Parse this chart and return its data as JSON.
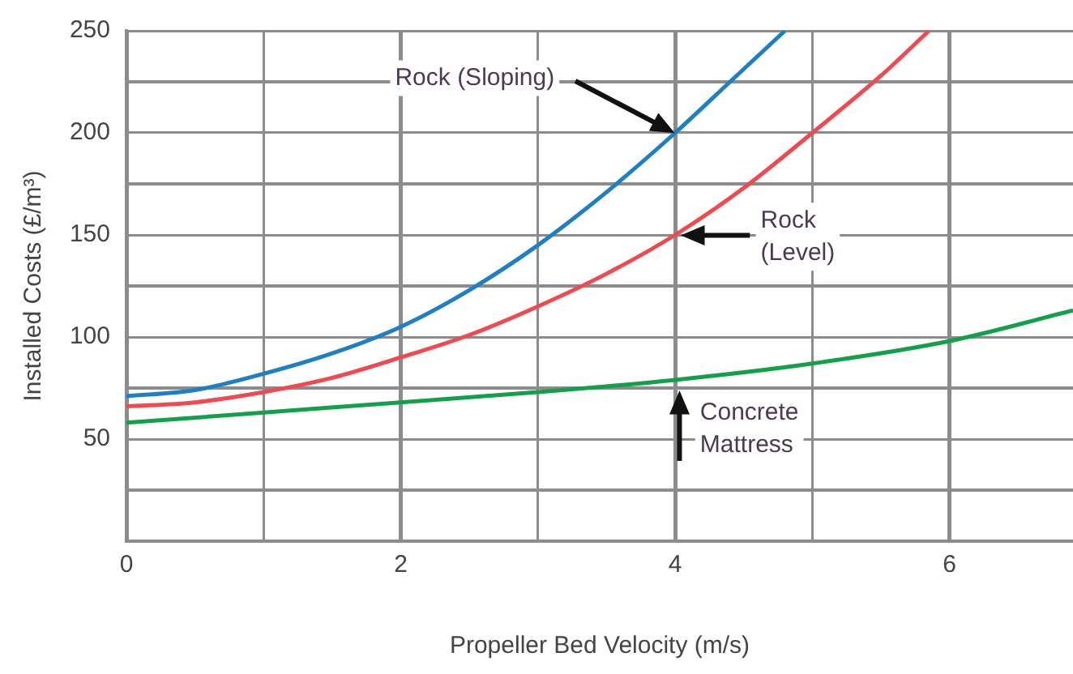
{
  "chart_data": {
    "type": "line",
    "xlabel": "Propeller Bed Velocity (m/s)",
    "ylabel": "Installed Costs (£/m³)",
    "xlim": [
      0,
      6.9
    ],
    "ylim": [
      0,
      250
    ],
    "xticks": [
      0,
      {
        "value": 1,
        "label": null
      },
      2,
      {
        "value": 3,
        "label": null
      },
      4,
      {
        "value": 5,
        "label": null
      },
      6
    ],
    "yticks": [
      {
        "value": 25,
        "label": null
      },
      50,
      {
        "value": 75,
        "label": null
      },
      100,
      {
        "value": 125,
        "label": null
      },
      150,
      {
        "value": 175,
        "label": null
      },
      200,
      {
        "value": 225,
        "label": null
      },
      250
    ],
    "grid": true,
    "legend": false,
    "marker": "none",
    "line_style": "solid",
    "series": [
      {
        "color": "#1f7fc4",
        "x": [
          0,
          0.5,
          1,
          1.5,
          2,
          2.5,
          3,
          3.5,
          4,
          4.4,
          4.8
        ],
        "values": [
          71,
          74,
          82,
          92,
          105,
          123,
          145,
          171,
          200,
          225,
          250
        ]
      },
      {
        "color": "#ef4a4f",
        "x": [
          0,
          0.5,
          1,
          1.5,
          2,
          2.5,
          3,
          3.5,
          4,
          4.5,
          5,
          5.5,
          5.85
        ],
        "values": [
          66,
          68,
          73,
          80,
          90,
          101,
          115,
          131,
          150,
          173,
          200,
          228,
          250
        ]
      },
      {
        "color": "#12a04a",
        "x": [
          0,
          1,
          2,
          3,
          4,
          5,
          6,
          6.9
        ],
        "values": [
          58,
          63,
          68,
          73,
          79,
          87,
          98,
          113
        ]
      }
    ],
    "annotations": [
      "Rock (Sloping)",
      "Rock\n(Level)",
      "Concrete\nMattress"
    ]
  }
}
